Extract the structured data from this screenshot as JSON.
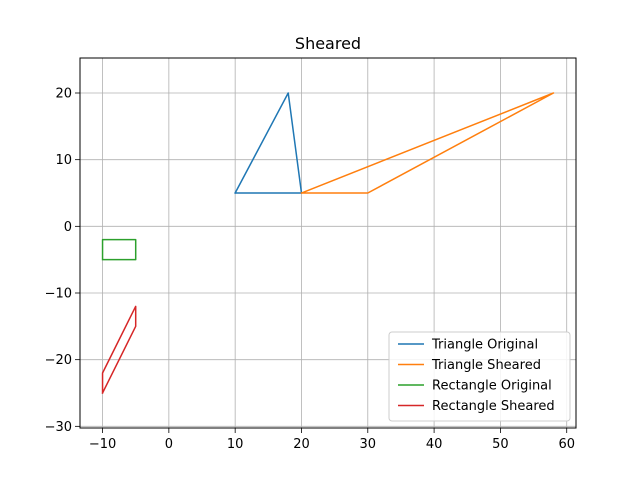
{
  "chart_data": {
    "type": "line",
    "title": "Sheared",
    "xlabel": "",
    "ylabel": "",
    "xlim": [
      -13.4,
      61.4
    ],
    "ylim": [
      -30.25,
      25.25
    ],
    "xticks": [
      -10,
      0,
      10,
      20,
      30,
      40,
      50,
      60
    ],
    "yticks": [
      -30,
      -20,
      -10,
      0,
      10,
      20
    ],
    "grid": true,
    "legend_position": "lower-right",
    "series": [
      {
        "name": "Triangle Original",
        "color": "#1f77b4",
        "x": [
          10,
          20,
          18,
          10
        ],
        "y": [
          5,
          5,
          20,
          5
        ]
      },
      {
        "name": "Triangle Sheared",
        "color": "#ff7f0e",
        "x": [
          20,
          30,
          58,
          20
        ],
        "y": [
          5,
          5,
          20,
          5
        ]
      },
      {
        "name": "Rectangle Original",
        "color": "#2ca02c",
        "x": [
          -10,
          -5,
          -5,
          -10,
          -10
        ],
        "y": [
          -5,
          -5,
          -2,
          -2,
          -5
        ]
      },
      {
        "name": "Rectangle Sheared",
        "color": "#d62728",
        "x": [
          -10,
          -5,
          -5,
          -10,
          -10
        ],
        "y": [
          -25,
          -15,
          -12,
          -22,
          -25
        ]
      }
    ]
  }
}
